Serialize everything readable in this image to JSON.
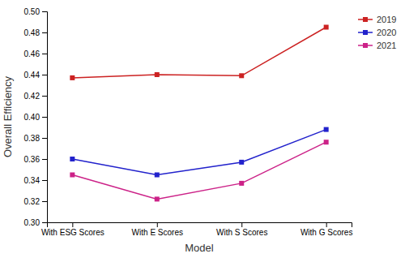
{
  "chart_data": {
    "type": "line",
    "categories": [
      "With ESG Scores",
      "With E Scores",
      "With S Scores",
      "With G Scores"
    ],
    "series": [
      {
        "name": "2019",
        "color": "#CC2222",
        "marker": "square",
        "values": [
          0.437,
          0.44,
          0.439,
          0.485
        ]
      },
      {
        "name": "2020",
        "color": "#2222CC",
        "marker": "square",
        "values": [
          0.36,
          0.345,
          0.357,
          0.388
        ]
      },
      {
        "name": "2021",
        "color": "#CC2288",
        "marker": "square",
        "values": [
          0.345,
          0.322,
          0.337,
          0.376
        ]
      }
    ],
    "xlabel": "Model",
    "ylabel": "Overall Efficiency",
    "ylim": [
      0.3,
      0.5
    ],
    "yticks": [
      {
        "value": 0.3,
        "label": "0.30"
      },
      0.32,
      0.34,
      0.36,
      0.38,
      {
        "value": 0.4,
        "label": "0.40"
      },
      0.42,
      0.44,
      0.46,
      0.48,
      {
        "value": 0.5,
        "label": "0.50"
      }
    ],
    "legend": "upper right",
    "grid": false
  }
}
